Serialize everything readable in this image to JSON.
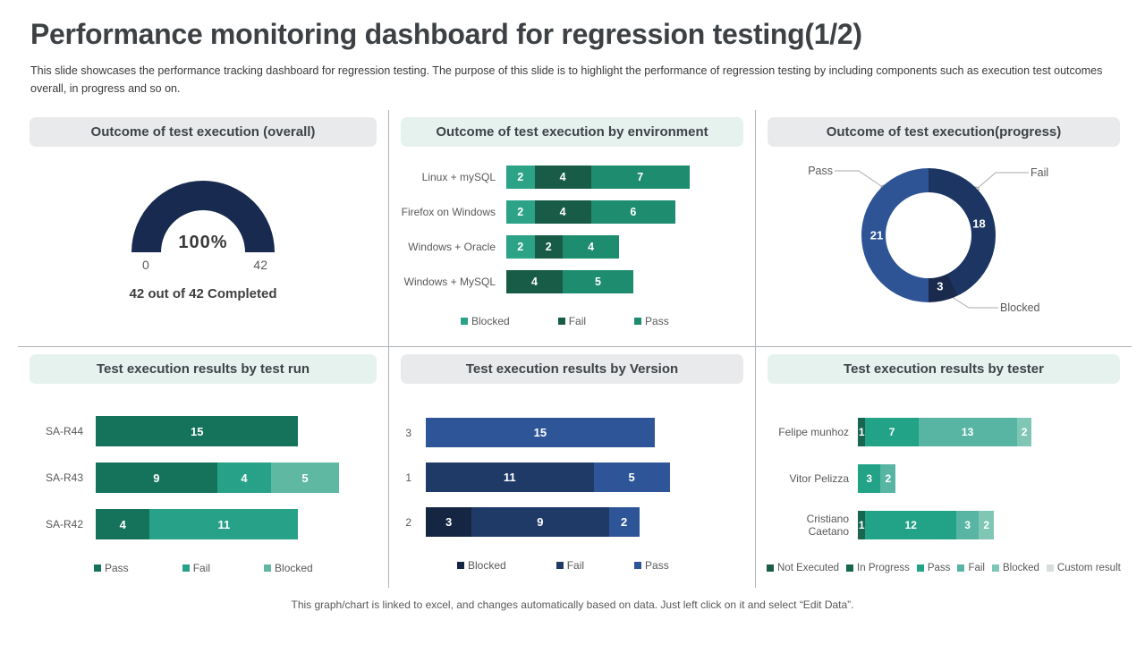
{
  "page": {
    "title": "Performance monitoring dashboard for regression testing(1/2)",
    "subtitle": "This slide showcases the performance tracking dashboard for regression testing. The purpose of this slide is to highlight the performance of regression testing by including components such as execution test outcomes overall, in progress and so on.",
    "footer": "This graph/chart is linked to excel, and changes automatically based on data. Just left click on it and select “Edit Data”."
  },
  "colors": {
    "header_gray": "#E9EAEB",
    "header_mint": "#E5F2EE",
    "divider": "#AEB3B9",
    "gauge_navy": "#182A4F"
  },
  "chart_data": [
    {
      "id": "overall",
      "type": "gauge",
      "title": "Outcome of test execution (overall)",
      "value": 42,
      "max": 42,
      "percent": 100,
      "center_label": "100%",
      "min_label": "0",
      "max_label": "42",
      "caption": "42 out of 42 Completed",
      "color": "#182A4F"
    },
    {
      "id": "environment",
      "type": "stacked-bar-h",
      "title": "Outcome of test execution by environment",
      "categories": [
        "Linux + mySQL",
        "Firefox on Windows",
        "Windows + Oracle",
        "Windows + MySQL"
      ],
      "series": [
        {
          "name": "Blocked",
          "color": "#2CA287",
          "values": [
            2,
            2,
            2,
            0
          ]
        },
        {
          "name": "Fail",
          "color": "#185C48",
          "values": [
            4,
            4,
            2,
            4
          ]
        },
        {
          "name": "Pass",
          "color": "#1E8C6E",
          "values": [
            7,
            6,
            4,
            5
          ]
        }
      ],
      "xmax": 17,
      "legend_position": "bottom"
    },
    {
      "id": "progress",
      "type": "donut",
      "title": "Outcome of test execution(progress)",
      "slices": [
        {
          "name": "Fail",
          "value": 18,
          "color": "#1C3563"
        },
        {
          "name": "Blocked",
          "value": 3,
          "color": "#1A2A4C"
        },
        {
          "name": "Pass",
          "value": 21,
          "color": "#2F5496"
        }
      ],
      "total": 42,
      "start_angle_deg": 0,
      "direction": "clockwise"
    },
    {
      "id": "testrun",
      "type": "stacked-bar-h",
      "title": "Test execution results by test run",
      "categories": [
        "SA-R44",
        "SA-R43",
        "SA-R42"
      ],
      "series": [
        {
          "name": "Pass",
          "color": "#15735B",
          "values": [
            15,
            9,
            4
          ]
        },
        {
          "name": "Fail",
          "color": "#27A188",
          "values": [
            0,
            4,
            11
          ]
        },
        {
          "name": "Blocked",
          "color": "#5FB8A2",
          "values": [
            0,
            5,
            0
          ]
        }
      ],
      "xmax": 21,
      "legend_position": "bottom"
    },
    {
      "id": "version",
      "type": "stacked-bar-h",
      "title": "Test execution results by Version",
      "categories": [
        "3",
        "1",
        "2"
      ],
      "series": [
        {
          "name": "Blocked",
          "color": "#152643",
          "values": [
            0,
            0,
            3
          ]
        },
        {
          "name": "Fail",
          "color": "#203A68",
          "values": [
            0,
            11,
            9
          ]
        },
        {
          "name": "Pass",
          "color": "#2E5597",
          "values": [
            15,
            5,
            2
          ]
        }
      ],
      "xmax": 21,
      "legend_position": "bottom"
    },
    {
      "id": "tester",
      "type": "stacked-bar-h",
      "title": "Test execution results by tester",
      "categories": [
        "Felipe munhoz",
        "Vitor Pelizza",
        "Cristiano Caetano"
      ],
      "series": [
        {
          "name": "Not Executed",
          "color": "#1C5B49",
          "values": [
            0,
            0,
            0
          ]
        },
        {
          "name": "In Progress",
          "color": "#186650",
          "values": [
            1,
            0,
            1
          ]
        },
        {
          "name": "Pass",
          "color": "#22A286",
          "values": [
            7,
            3,
            12
          ]
        },
        {
          "name": "Fail",
          "color": "#58B5A3",
          "values": [
            13,
            2,
            3
          ]
        },
        {
          "name": "Blocked",
          "color": "#80C6B5",
          "values": [
            2,
            0,
            2
          ]
        },
        {
          "name": "Custom result",
          "color": "#D8DEDC",
          "values": [
            0,
            0,
            0
          ]
        }
      ],
      "xmax": 35,
      "legend_position": "bottom"
    }
  ]
}
